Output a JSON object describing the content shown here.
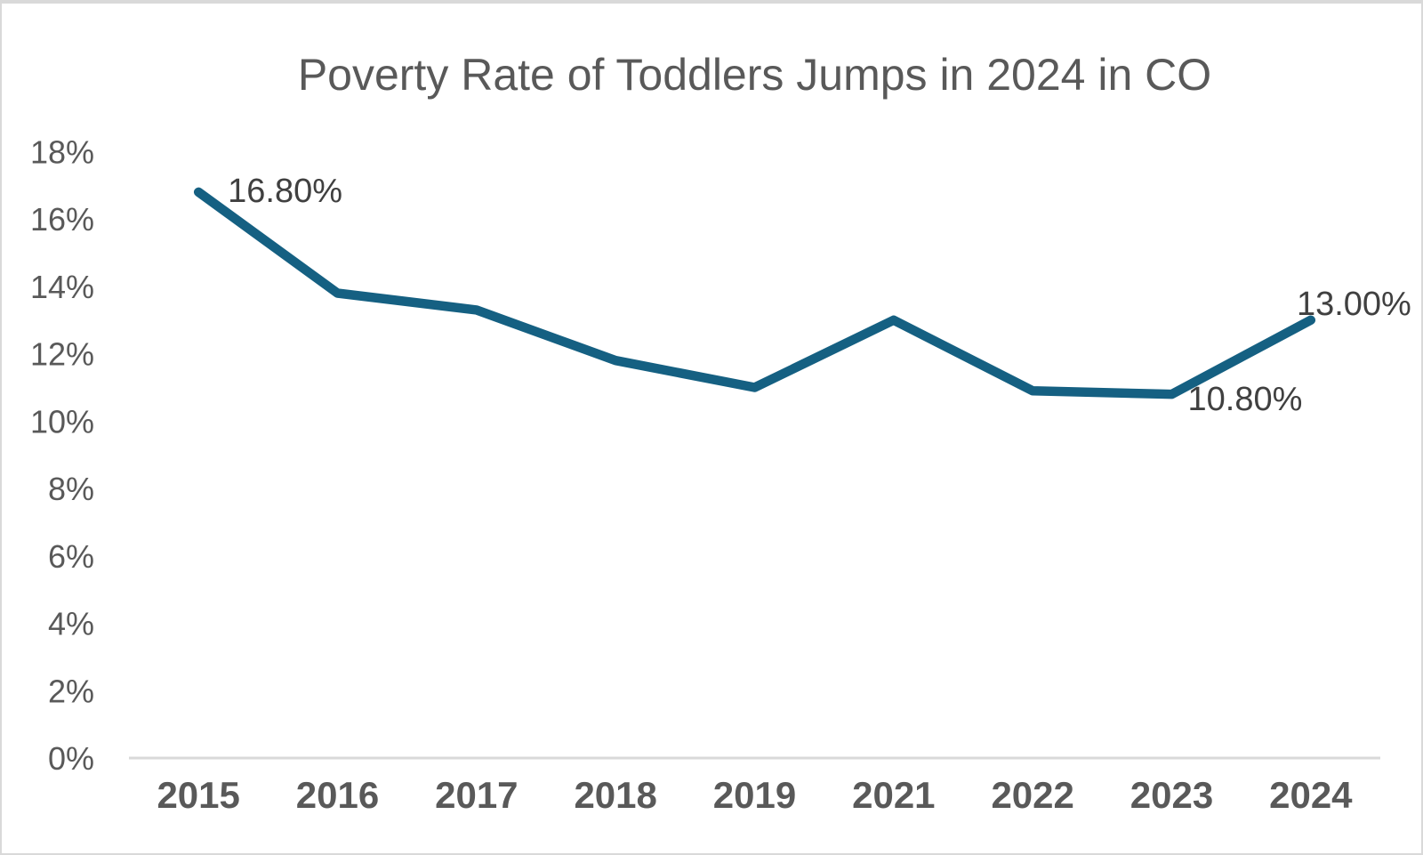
{
  "chart_data": {
    "type": "line",
    "title": "Poverty Rate of Toddlers Jumps in 2024 in CO",
    "categories": [
      "2015",
      "2016",
      "2017",
      "2018",
      "2019",
      "2021",
      "2022",
      "2023",
      "2024"
    ],
    "series": [
      {
        "values": [
          16.8,
          13.8,
          13.3,
          11.8,
          11.0,
          13.0,
          10.9,
          10.8,
          13.0
        ]
      }
    ],
    "y_tick_labels": [
      "18%",
      "16%",
      "14%",
      "12%",
      "10%",
      "8%",
      "6%",
      "4%",
      "2%",
      "0%"
    ],
    "y_tick_step": 2,
    "ylim": [
      0,
      18
    ],
    "xlabel": "",
    "ylabel": "",
    "grid": false,
    "legend": "none",
    "data_labels": [
      {
        "category": "2015",
        "text": "16.80%",
        "position": "right"
      },
      {
        "category": "2023",
        "text": "10.80%",
        "position": "below-right"
      },
      {
        "category": "2024",
        "text": "13.00%",
        "position": "above-right"
      }
    ]
  },
  "colors": {
    "line": "#156082",
    "title_text": "#595959",
    "axis_text": "#595959",
    "data_label_text": "#404040",
    "axis_line": "#d9d9d9",
    "frame_border": "#d9d9d9",
    "background": "#ffffff"
  }
}
